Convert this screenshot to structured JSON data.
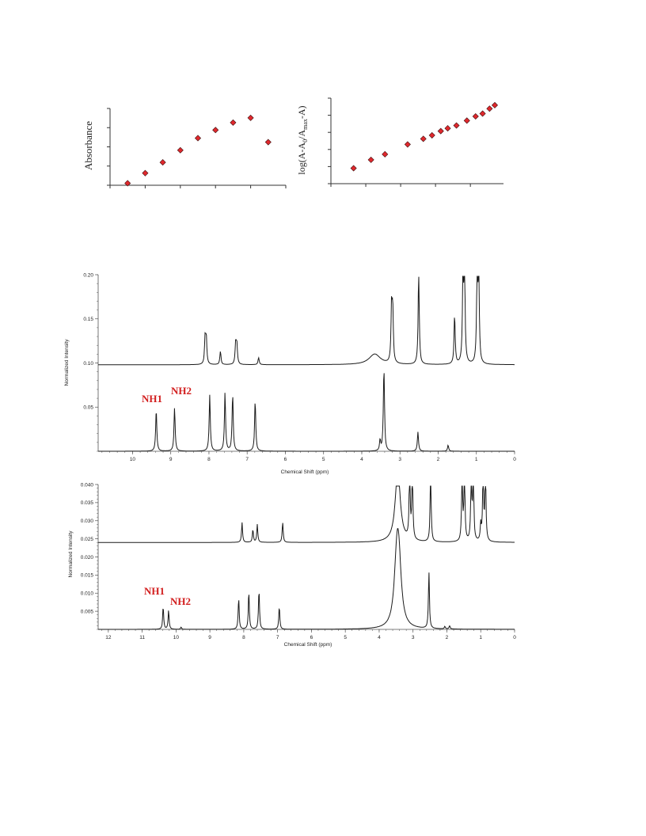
{
  "chart_data": [
    {
      "type": "scatter",
      "ylabel": "Absorbance",
      "xlabel": "",
      "marker_color": "#e0282d",
      "x": [
        1,
        2,
        3,
        4,
        5,
        6,
        7,
        8,
        9
      ],
      "y": [
        0.03,
        0.18,
        0.34,
        0.52,
        0.7,
        0.82,
        0.93,
        1.0,
        0.64
      ],
      "xlim": [
        0,
        10
      ],
      "ylim": [
        0,
        1.14
      ]
    },
    {
      "type": "scatter",
      "ylabel_parts": {
        "pre": "log(A-A",
        "sub1": "0",
        "mid": "/A",
        "sub2": "max",
        "post": "-A)"
      },
      "xlabel": "",
      "marker_color": "#e0282d",
      "x": [
        1.3,
        2.3,
        3.1,
        4.4,
        5.3,
        5.8,
        6.3,
        6.7,
        7.2,
        7.8,
        8.3,
        8.7,
        9.1,
        9.4
      ],
      "y": [
        0.22,
        0.34,
        0.42,
        0.56,
        0.64,
        0.69,
        0.75,
        0.79,
        0.83,
        0.9,
        0.96,
        1.0,
        1.07,
        1.12
      ],
      "xlim": [
        0,
        9.9
      ],
      "ylim": [
        0,
        1.22
      ]
    },
    {
      "type": "line",
      "xlabel": "Chemical Shift (ppm)",
      "ylabel": "Normalized Intensity",
      "ylim": [
        0,
        0.2
      ],
      "xlim": [
        10.9,
        0
      ],
      "x_ticks": [
        10,
        9,
        8,
        7,
        6,
        5,
        4,
        3,
        2,
        1,
        0
      ],
      "y_ticks": [
        "0.05",
        "0.10",
        "0.15",
        "0.20"
      ],
      "y_tick_values": [
        0.05,
        0.1,
        0.15,
        0.2
      ],
      "annotations": [
        "NH1",
        "NH2"
      ],
      "series": [
        {
          "baseline": 0.098,
          "peaks": [
            [
              8.1,
              0.03
            ],
            [
              8.07,
              0.028
            ],
            [
              7.7,
              0.015
            ],
            [
              7.3,
              0.024
            ],
            [
              7.27,
              0.022
            ],
            [
              6.7,
              0.008
            ],
            [
              3.66,
              0.012
            ],
            [
              3.22,
              0.062
            ],
            [
              3.19,
              0.058
            ],
            [
              2.51,
              0.102
            ],
            [
              1.57,
              0.055
            ],
            [
              1.35,
              0.102
            ],
            [
              1.31,
              0.102
            ],
            [
              0.98,
              0.102
            ],
            [
              0.94,
              0.102
            ]
          ]
        },
        {
          "baseline": 0.0,
          "peaks": [
            [
              9.38,
              0.047
            ],
            [
              8.9,
              0.049
            ],
            [
              7.98,
              0.064
            ],
            [
              7.58,
              0.066
            ],
            [
              7.38,
              0.064
            ],
            [
              6.79,
              0.057
            ],
            [
              3.52,
              0.012
            ],
            [
              3.42,
              0.094
            ],
            [
              2.53,
              0.022
            ],
            [
              1.74,
              0.007
            ]
          ]
        }
      ]
    },
    {
      "type": "line",
      "xlabel": "Chemical Shift (ppm)",
      "ylabel": "Normalized Intensity",
      "ylim": [
        0,
        0.04
      ],
      "xlim": [
        12.3,
        0
      ],
      "x_ticks": [
        12,
        11,
        10,
        9,
        8,
        7,
        6,
        5,
        4,
        3,
        2,
        1,
        0
      ],
      "y_ticks": [
        "0.005",
        "0.010",
        "0.015",
        "0.020",
        "0.025",
        "0.030",
        "0.035",
        "0.040"
      ],
      "y_tick_values": [
        0.005,
        0.01,
        0.015,
        0.02,
        0.025,
        0.03,
        0.035,
        0.04
      ],
      "annotations": [
        "NH1",
        "NH2"
      ],
      "series": [
        {
          "baseline": 0.024,
          "peaks": [
            [
              8.05,
              0.0055
            ],
            [
              7.73,
              0.0035
            ],
            [
              7.6,
              0.005
            ],
            [
              6.85,
              0.0055
            ],
            [
              3.45,
              0.02
            ],
            [
              3.1,
              0.02
            ],
            [
              3.02,
              0.02
            ],
            [
              2.48,
              0.02
            ],
            [
              1.55,
              0.02
            ],
            [
              1.48,
              0.02
            ],
            [
              1.28,
              0.02
            ],
            [
              1.22,
              0.02
            ],
            [
              1.0,
              0.0045
            ],
            [
              0.93,
              0.02
            ],
            [
              0.86,
              0.02
            ]
          ]
        },
        {
          "baseline": 0.0,
          "peaks": [
            [
              10.38,
              0.0062
            ],
            [
              10.22,
              0.0052
            ],
            [
              9.85,
              0.0006
            ],
            [
              8.15,
              0.0085
            ],
            [
              7.85,
              0.0103
            ],
            [
              7.55,
              0.0108
            ],
            [
              6.95,
              0.0062
            ],
            [
              3.48,
              0.0155
            ],
            [
              3.42,
              0.0155
            ],
            [
              2.53,
              0.0155
            ],
            [
              2.06,
              0.0007
            ],
            [
              1.92,
              0.0009
            ]
          ]
        }
      ]
    }
  ]
}
